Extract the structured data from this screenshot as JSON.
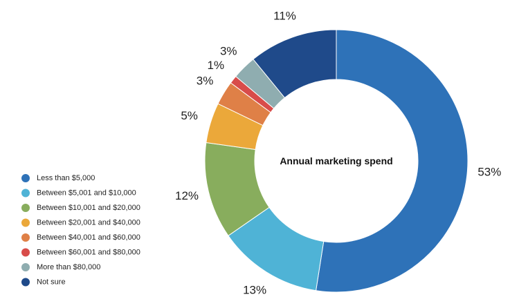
{
  "chart_data": {
    "type": "pie",
    "variant": "donut",
    "center_label": "Annual marketing spend",
    "legend_position": "bottom-left",
    "categories": [
      "Less than $5,000",
      "Between $5,001 and $10,000",
      "Between $10,001 and $20,000",
      "Between $20,001 and $40,000",
      "Between $40,001 and $60,000",
      "Between $60,001 and $80,000",
      "More than $80,000",
      "Not sure"
    ],
    "values": [
      53,
      13,
      12,
      5,
      3,
      1,
      3,
      11
    ],
    "value_labels": [
      "53%",
      "13%",
      "12%",
      "5%",
      "3%",
      "1%",
      "3%",
      "11%"
    ],
    "colors": [
      "#2e72b8",
      "#4fb3d6",
      "#88ad5d",
      "#eba83a",
      "#df8047",
      "#d84c4a",
      "#8fadb0",
      "#1f4a8a"
    ]
  }
}
